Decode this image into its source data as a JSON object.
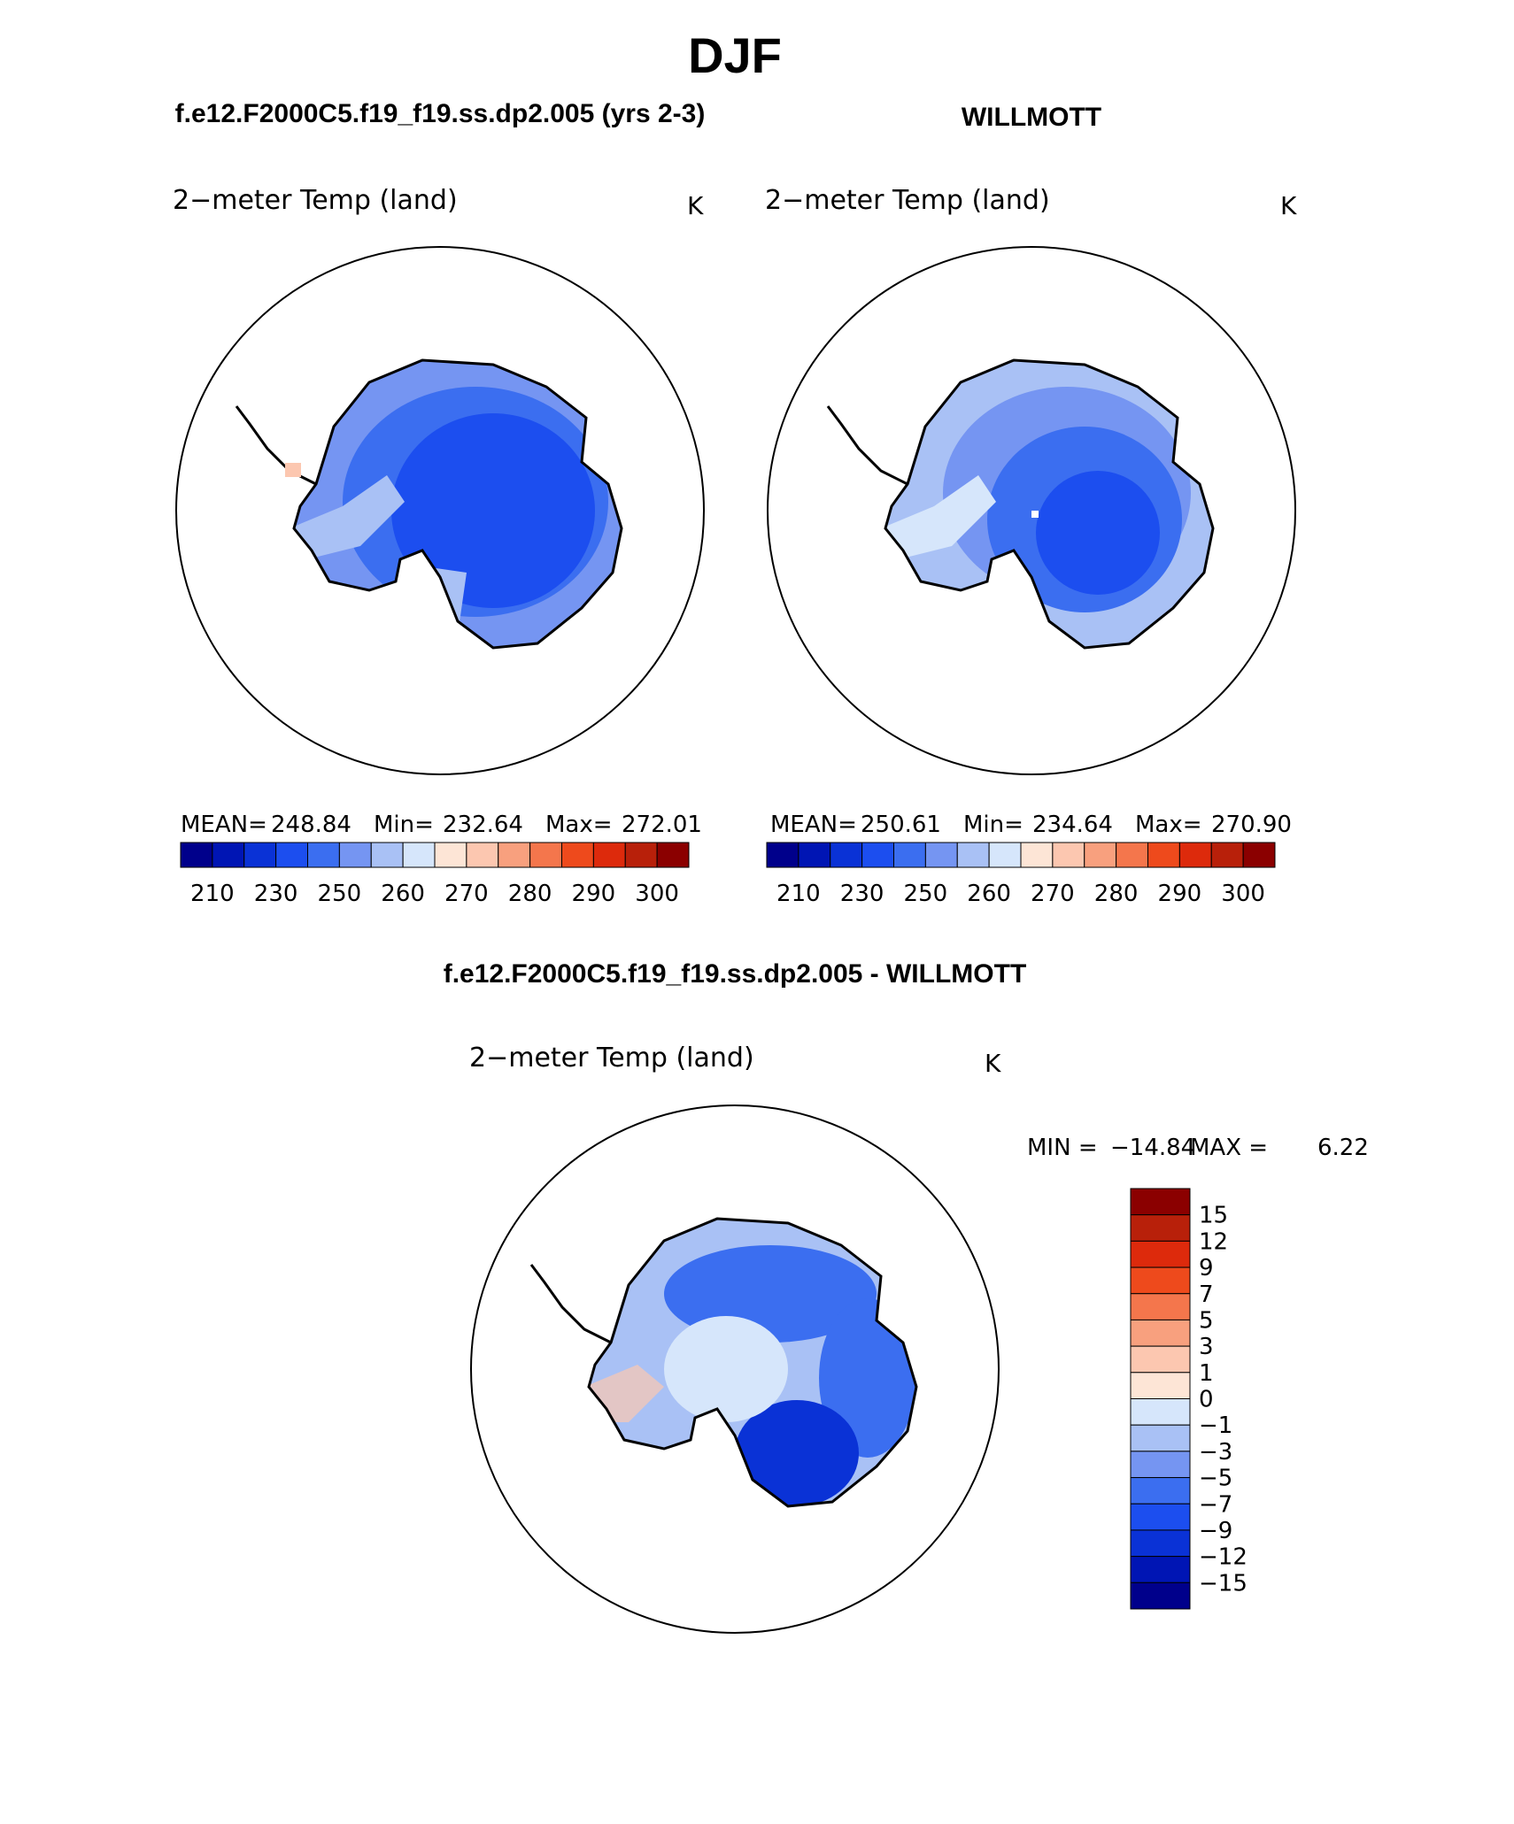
{
  "page_title": "DJF",
  "panels": [
    {
      "heading": "f.e12.F2000C5.f19_f19.ss.dp2.005 (yrs 2-3)",
      "variable": "2−meter Temp (land)",
      "units": "K",
      "stats": {
        "mean_label": "MEAN=",
        "mean": "248.84",
        "min_label": "Min=",
        "min": "232.64",
        "max_label": "Max=",
        "max": "272.01"
      }
    },
    {
      "heading": "WILLMOTT",
      "variable": "2−meter Temp (land)",
      "units": "K",
      "stats": {
        "mean_label": "MEAN=",
        "mean": "250.61",
        "min_label": "Min=",
        "min": "234.64",
        "max_label": "Max=",
        "max": "270.90"
      }
    },
    {
      "heading": "f.e12.F2000C5.f19_f19.ss.dp2.005 - WILLMOTT",
      "variable": "2−meter Temp (land)",
      "units": "K",
      "stats": {
        "min_label": "MIN =",
        "min": "−14.84",
        "max_label": "MAX =",
        "max": "6.22"
      }
    }
  ],
  "abs_colorbar": {
    "colors": [
      "#00008b",
      "#0015b4",
      "#0a32d6",
      "#1c4eef",
      "#3b6ef0",
      "#7595f2",
      "#a9c1f5",
      "#d6e6fb",
      "#fde5d6",
      "#fcc7b0",
      "#f8a07e",
      "#f4764c",
      "#ee4a1c",
      "#dd2a0c",
      "#b8200a",
      "#8b0000"
    ],
    "labels": [
      "210",
      "230",
      "250",
      "260",
      "270",
      "280",
      "290",
      "300"
    ]
  },
  "diff_colorbar": {
    "colors": [
      "#8b0000",
      "#b8200a",
      "#dd2a0c",
      "#ee4a1c",
      "#f4764c",
      "#f8a07e",
      "#fcc7b0",
      "#fde5d6",
      "#d6e6fb",
      "#a9c1f5",
      "#7595f2",
      "#3b6ef0",
      "#1c4eef",
      "#0a32d6",
      "#0015b4",
      "#00008b"
    ],
    "labels": [
      "15",
      "12",
      "9",
      "7",
      "5",
      "3",
      "1",
      "0",
      "−1",
      "−3",
      "−5",
      "−7",
      "−9",
      "−12",
      "−15"
    ]
  }
}
